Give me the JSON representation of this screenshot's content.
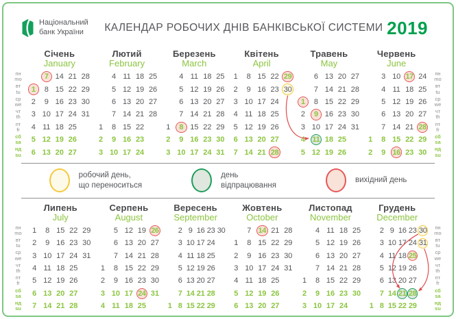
{
  "header": {
    "logo_line1": "Національний",
    "logo_line2": "банк України",
    "title": "КАЛЕНДАР РОБОЧИХ ДНІВ БАНКІВСЬКОЇ СИСТЕМИ",
    "year": "2019"
  },
  "weekdays": [
    {
      "ua": "пн",
      "en": "mo",
      "weekend": false
    },
    {
      "ua": "вт",
      "en": "tu",
      "weekend": false
    },
    {
      "ua": "ср",
      "en": "we",
      "weekend": false
    },
    {
      "ua": "чт",
      "en": "th",
      "weekend": false
    },
    {
      "ua": "пт",
      "en": "fr",
      "weekend": false
    },
    {
      "ua": "сб",
      "en": "sa",
      "weekend": true
    },
    {
      "ua": "нд",
      "en": "su",
      "weekend": true
    }
  ],
  "months": [
    {
      "ua": "Січень",
      "en": "January",
      "cols": 5,
      "grid": [
        [
          "",
          "7",
          "14",
          "21",
          "28"
        ],
        [
          "1",
          "8",
          "15",
          "22",
          "29"
        ],
        [
          "2",
          "9",
          "16",
          "23",
          "30"
        ],
        [
          "3",
          "10",
          "17",
          "24",
          "31"
        ],
        [
          "4",
          "11",
          "18",
          "25",
          ""
        ],
        [
          "5",
          "12",
          "19",
          "26",
          ""
        ],
        [
          "6",
          "13",
          "20",
          "27",
          ""
        ]
      ],
      "marks": {
        "1": "holiday",
        "7": "holiday"
      }
    },
    {
      "ua": "Лютий",
      "en": "February",
      "cols": 5,
      "grid": [
        [
          "",
          "4",
          "11",
          "18",
          "25"
        ],
        [
          "",
          "5",
          "12",
          "19",
          "26"
        ],
        [
          "",
          "6",
          "13",
          "20",
          "27"
        ],
        [
          "",
          "7",
          "14",
          "21",
          "28"
        ],
        [
          "1",
          "8",
          "15",
          "22",
          ""
        ],
        [
          "2",
          "9",
          "16",
          "23",
          ""
        ],
        [
          "3",
          "10",
          "17",
          "24",
          ""
        ]
      ],
      "marks": {}
    },
    {
      "ua": "Березень",
      "en": "March",
      "cols": 5,
      "grid": [
        [
          "",
          "4",
          "11",
          "18",
          "25"
        ],
        [
          "",
          "5",
          "12",
          "19",
          "26"
        ],
        [
          "",
          "6",
          "13",
          "20",
          "27"
        ],
        [
          "",
          "7",
          "14",
          "21",
          "28"
        ],
        [
          "1",
          "8",
          "15",
          "22",
          "29"
        ],
        [
          "2",
          "9",
          "16",
          "23",
          "30"
        ],
        [
          "3",
          "10",
          "17",
          "24",
          "31"
        ]
      ],
      "marks": {
        "8": "holiday"
      }
    },
    {
      "ua": "Квітень",
      "en": "April",
      "cols": 5,
      "grid": [
        [
          "1",
          "8",
          "15",
          "22",
          "29"
        ],
        [
          "2",
          "9",
          "16",
          "23",
          "30"
        ],
        [
          "3",
          "10",
          "17",
          "24",
          ""
        ],
        [
          "4",
          "11",
          "18",
          "25",
          ""
        ],
        [
          "5",
          "12",
          "19",
          "26",
          ""
        ],
        [
          "6",
          "13",
          "20",
          "27",
          ""
        ],
        [
          "7",
          "14",
          "21",
          "28",
          ""
        ]
      ],
      "marks": {
        "28": "holiday",
        "29": "holiday",
        "30": "moved"
      }
    },
    {
      "ua": "Травень",
      "en": "May",
      "cols": 5,
      "grid": [
        [
          "",
          "6",
          "13",
          "20",
          "27"
        ],
        [
          "",
          "7",
          "14",
          "21",
          "28"
        ],
        [
          "1",
          "8",
          "15",
          "22",
          "29"
        ],
        [
          "2",
          "9",
          "16",
          "23",
          "30"
        ],
        [
          "3",
          "10",
          "17",
          "24",
          "31"
        ],
        [
          "4",
          "11",
          "18",
          "25",
          ""
        ],
        [
          "5",
          "12",
          "19",
          "26",
          ""
        ]
      ],
      "marks": {
        "1": "holiday",
        "9": "holiday",
        "11": "workoff"
      }
    },
    {
      "ua": "Червень",
      "en": "June",
      "cols": 5,
      "grid": [
        [
          "",
          "3",
          "10",
          "17",
          "24"
        ],
        [
          "",
          "4",
          "11",
          "18",
          "25"
        ],
        [
          "",
          "5",
          "12",
          "19",
          "26"
        ],
        [
          "",
          "6",
          "13",
          "20",
          "27"
        ],
        [
          "",
          "7",
          "14",
          "21",
          "28"
        ],
        [
          "1",
          "8",
          "15",
          "22",
          "29"
        ],
        [
          "2",
          "9",
          "16",
          "23",
          "30"
        ]
      ],
      "marks": {
        "16": "holiday",
        "17": "holiday",
        "28": "holiday"
      }
    },
    {
      "ua": "Липень",
      "en": "July",
      "cols": 5,
      "grid": [
        [
          "1",
          "8",
          "15",
          "22",
          "29"
        ],
        [
          "2",
          "9",
          "16",
          "23",
          "30"
        ],
        [
          "3",
          "10",
          "17",
          "24",
          "31"
        ],
        [
          "4",
          "11",
          "18",
          "25",
          ""
        ],
        [
          "5",
          "12",
          "19",
          "26",
          ""
        ],
        [
          "6",
          "13",
          "20",
          "27",
          ""
        ],
        [
          "7",
          "14",
          "21",
          "28",
          ""
        ]
      ],
      "marks": {}
    },
    {
      "ua": "Серпень",
      "en": "August",
      "cols": 5,
      "grid": [
        [
          "",
          "5",
          "12",
          "19",
          "26"
        ],
        [
          "",
          "6",
          "13",
          "20",
          "27"
        ],
        [
          "",
          "7",
          "14",
          "21",
          "28"
        ],
        [
          "1",
          "8",
          "15",
          "22",
          "29"
        ],
        [
          "2",
          "9",
          "16",
          "23",
          "30"
        ],
        [
          "3",
          "10",
          "17",
          "24",
          "31"
        ],
        [
          "4",
          "11",
          "18",
          "25",
          ""
        ]
      ],
      "marks": {
        "24": "holiday",
        "26": "holiday"
      }
    },
    {
      "ua": "Вересень",
      "en": "September",
      "cols": 6,
      "grid": [
        [
          "",
          "2",
          "9",
          "16",
          "23",
          "30"
        ],
        [
          "",
          "3",
          "10",
          "17",
          "24",
          ""
        ],
        [
          "",
          "4",
          "11",
          "18",
          "25",
          ""
        ],
        [
          "",
          "5",
          "12",
          "19",
          "26",
          ""
        ],
        [
          "",
          "6",
          "13",
          "20",
          "27",
          ""
        ],
        [
          "",
          "7",
          "14",
          "21",
          "28",
          ""
        ],
        [
          "1",
          "8",
          "15",
          "22",
          "29",
          ""
        ]
      ],
      "marks": {}
    },
    {
      "ua": "Жовтень",
      "en": "October",
      "cols": 5,
      "grid": [
        [
          "",
          "7",
          "14",
          "21",
          "28"
        ],
        [
          "1",
          "8",
          "15",
          "22",
          "29"
        ],
        [
          "2",
          "9",
          "16",
          "23",
          "30"
        ],
        [
          "3",
          "10",
          "17",
          "24",
          "31"
        ],
        [
          "4",
          "11",
          "18",
          "25",
          ""
        ],
        [
          "5",
          "12",
          "19",
          "26",
          ""
        ],
        [
          "6",
          "13",
          "20",
          "27",
          ""
        ]
      ],
      "marks": {
        "14": "holiday"
      }
    },
    {
      "ua": "Листопад",
      "en": "November",
      "cols": 5,
      "grid": [
        [
          "",
          "4",
          "11",
          "18",
          "25"
        ],
        [
          "",
          "5",
          "12",
          "19",
          "26"
        ],
        [
          "",
          "6",
          "13",
          "20",
          "27"
        ],
        [
          "",
          "7",
          "14",
          "21",
          "28"
        ],
        [
          "1",
          "8",
          "15",
          "22",
          "29"
        ],
        [
          "2",
          "9",
          "16",
          "23",
          "30"
        ],
        [
          "3",
          "10",
          "17",
          "24",
          ""
        ]
      ],
      "marks": {}
    },
    {
      "ua": "Грудень",
      "en": "December",
      "cols": 6,
      "grid": [
        [
          "",
          "2",
          "9",
          "16",
          "23",
          "30"
        ],
        [
          "",
          "3",
          "10",
          "17",
          "24",
          "31"
        ],
        [
          "",
          "4",
          "11",
          "18",
          "25",
          ""
        ],
        [
          "",
          "5",
          "12",
          "19",
          "26",
          ""
        ],
        [
          "",
          "6",
          "13",
          "20",
          "27",
          ""
        ],
        [
          "",
          "7",
          "14",
          "21",
          "28",
          ""
        ],
        [
          "1",
          "8",
          "15",
          "22",
          "29",
          ""
        ]
      ],
      "marks": {
        "25": "holiday",
        "30": "moved",
        "31": "moved",
        "21": "workoff",
        "28": "workoff"
      }
    }
  ],
  "legend": {
    "items": [
      {
        "type": "moved",
        "line1": "робочий день,",
        "line2": "що переноситься"
      },
      {
        "type": "workoff",
        "line1": "день",
        "line2": "відпрацювання"
      },
      {
        "type": "holiday",
        "line1": "вихідний день",
        "line2": ""
      }
    ]
  },
  "arrows": [
    {
      "from": [
        3,
        "30"
      ],
      "to": [
        4,
        "11"
      ],
      "from_anchor": [
        0,
        9
      ],
      "to_anchor": [
        -11,
        -2
      ],
      "c1": [
        -7,
        30
      ],
      "c2": [
        -28,
        2
      ]
    },
    {
      "from": [
        11,
        "30"
      ],
      "to": [
        11,
        "21"
      ],
      "from_anchor": [
        -7,
        5
      ],
      "to_anchor": [
        -4,
        -8
      ],
      "c1": [
        -38,
        22
      ],
      "c2": [
        -20,
        -28
      ]
    },
    {
      "from": [
        11,
        "31"
      ],
      "to": [
        11,
        "28"
      ],
      "from_anchor": [
        2,
        8
      ],
      "to_anchor": [
        9,
        -4
      ],
      "c1": [
        10,
        26
      ],
      "c2": [
        16,
        -14
      ]
    }
  ],
  "colors": {
    "frame_green": "#7CC67F",
    "brand_green": "#00A04E",
    "light_green": "#8CC540",
    "text_dark": "#54565A",
    "label_gray": "#8A8C8F",
    "divider_gray": "#8F9092",
    "holiday_ring": "#E6575A",
    "holiday_fill": "#F9E2D8",
    "moved_ring": "#F5C93C",
    "moved_fill": "#FDFAE9",
    "workoff_ring": "#1E9E5C",
    "workoff_fill": "#DFE7DE",
    "arrow_red": "#E04B4E",
    "logo_green": "#13A05C"
  }
}
